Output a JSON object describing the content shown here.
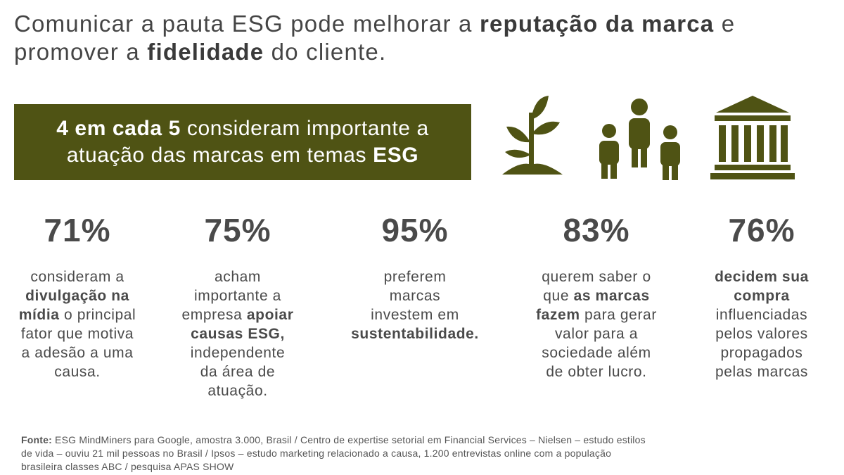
{
  "title": {
    "lines": [
      [
        {
          "text": "Comunicar a pauta ESG pode melhorar a "
        },
        {
          "text": "reputação da marca",
          "bold": true
        },
        {
          "text": " e"
        }
      ],
      [
        {
          "text": "promover a "
        },
        {
          "text": "fidelidade",
          "bold": true
        },
        {
          "text": " do cliente."
        }
      ]
    ]
  },
  "highlight": {
    "lines": [
      [
        {
          "text": "4 em cada 5",
          "bold": true
        },
        {
          "text": " consideram importante a"
        }
      ],
      [
        {
          "text": "atuação das marcas em temas "
        },
        {
          "text": "ESG",
          "bold": true
        }
      ]
    ]
  },
  "stats": [
    {
      "value": "71%",
      "lines": [
        [
          {
            "text": "consideram a"
          }
        ],
        [
          {
            "text": "divulgação na",
            "bold": true
          }
        ],
        [
          {
            "text": "mídia",
            "bold": true
          },
          {
            "text": " o principal"
          }
        ],
        [
          {
            "text": "fator que motiva"
          }
        ],
        [
          {
            "text": "a adesão a uma"
          }
        ],
        [
          {
            "text": "causa."
          }
        ]
      ]
    },
    {
      "value": "75%",
      "lines": [
        [
          {
            "text": "acham"
          }
        ],
        [
          {
            "text": "importante a"
          }
        ],
        [
          {
            "text": "empresa "
          },
          {
            "text": "apoiar",
            "bold": true
          }
        ],
        [
          {
            "text": "causas ESG,",
            "bold": true
          }
        ],
        [
          {
            "text": "independente"
          }
        ],
        [
          {
            "text": "da área de"
          }
        ],
        [
          {
            "text": "atuação."
          }
        ]
      ]
    },
    {
      "value": "95%",
      "lines": [
        [
          {
            "text": "preferem"
          }
        ],
        [
          {
            "text": "marcas"
          }
        ],
        [
          {
            "text": "investem em"
          }
        ],
        [
          {
            "text": "sustentabilidade.",
            "bold": true
          }
        ]
      ]
    },
    {
      "value": "83%",
      "lines": [
        [
          {
            "text": "querem saber o"
          }
        ],
        [
          {
            "text": "que "
          },
          {
            "text": "as marcas",
            "bold": true
          }
        ],
        [
          {
            "text": "fazem",
            "bold": true
          },
          {
            "text": " para gerar"
          }
        ],
        [
          {
            "text": "valor para a"
          }
        ],
        [
          {
            "text": "sociedade além"
          }
        ],
        [
          {
            "text": "de obter lucro."
          }
        ]
      ]
    },
    {
      "value": "76%",
      "lines": [
        [
          {
            "text": "decidem sua",
            "bold": true
          }
        ],
        [
          {
            "text": "compra",
            "bold": true
          }
        ],
        [
          {
            "text": "influenciadas"
          }
        ],
        [
          {
            "text": "pelos valores"
          }
        ],
        [
          {
            "text": "propagados"
          }
        ],
        [
          {
            "text": "pelas marcas"
          }
        ]
      ]
    }
  ],
  "footer": {
    "lines": [
      [
        {
          "text": "Fonte:",
          "bold": true
        },
        {
          "text": " ESG MindMiners para Google, amostra 3.000, Brasil / Centro de expertise setorial em Financial Services – Nielsen – estudo estilos"
        }
      ],
      [
        {
          "text": "de vida – ouviu 21 mil pessoas no Brasil / Ipsos – estudo marketing relacionado a causa, 1.200 entrevistas online com a população"
        }
      ],
      [
        {
          "text": "brasileira classes ABC / pesquisa APAS SHOW"
        }
      ]
    ]
  }
}
